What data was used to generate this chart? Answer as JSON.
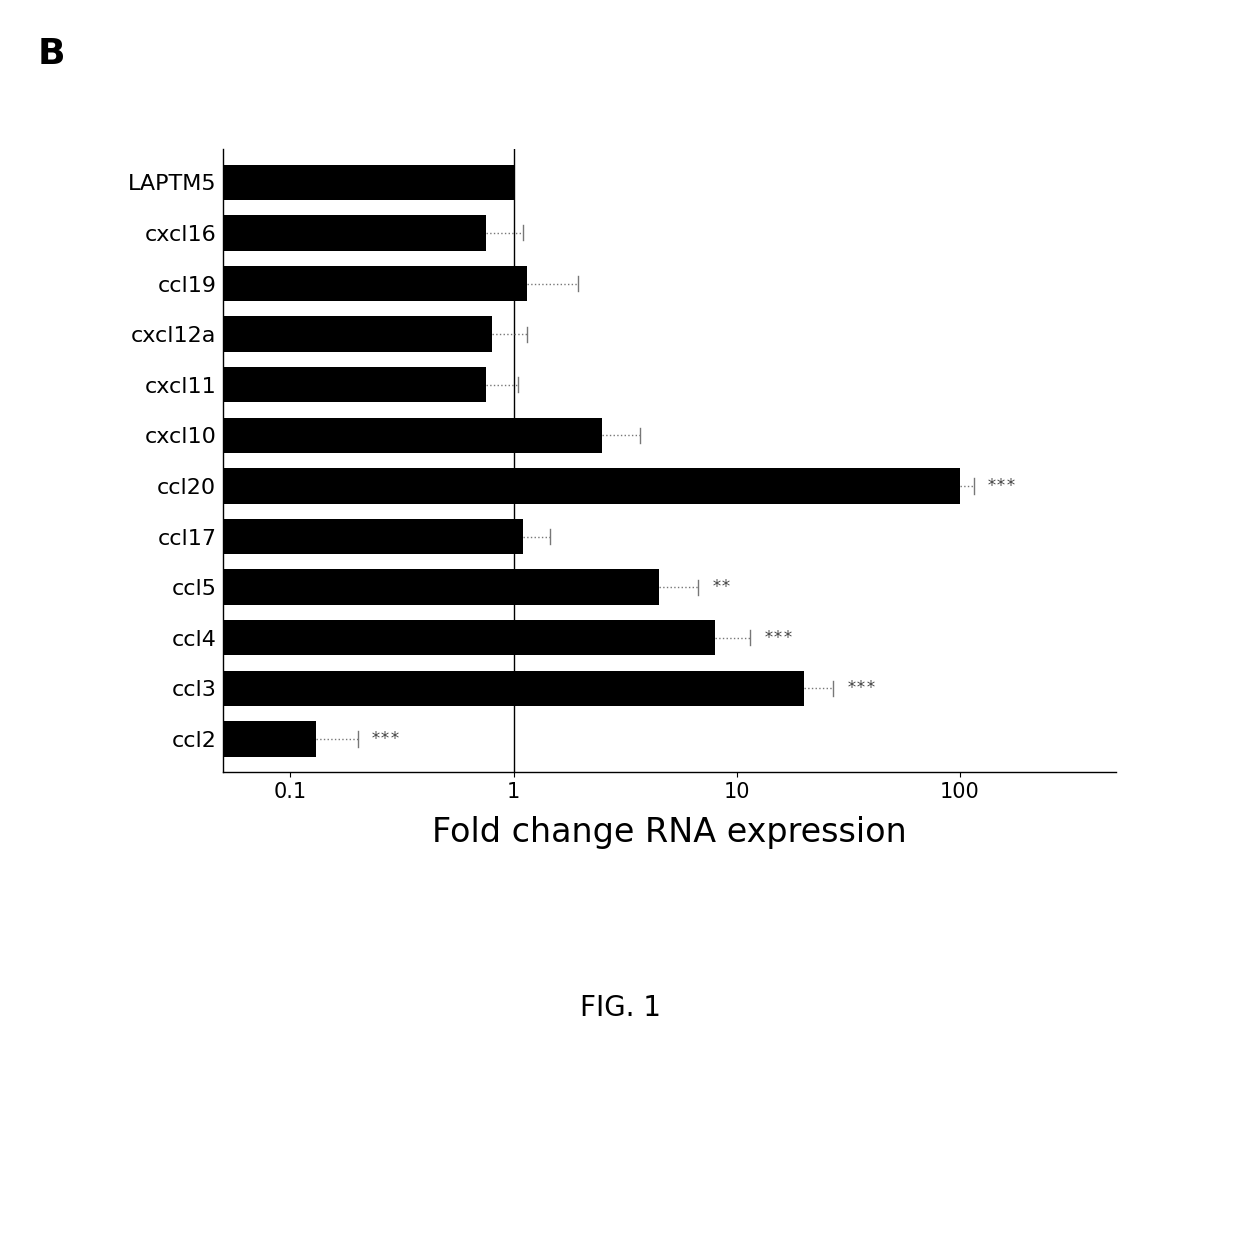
{
  "categories": [
    "LAPTM5",
    "cxcl16",
    "ccl19",
    "cxcl12a",
    "cxcl11",
    "cxcl10",
    "ccl20",
    "ccl17",
    "ccl5",
    "ccl4",
    "ccl3",
    "ccl2"
  ],
  "values": [
    1.0,
    0.75,
    1.15,
    0.8,
    0.75,
    2.5,
    100.0,
    1.1,
    4.5,
    8.0,
    20.0,
    0.13
  ],
  "errors": [
    0.0,
    0.35,
    0.8,
    0.35,
    0.3,
    1.2,
    15.0,
    0.35,
    2.2,
    3.5,
    7.0,
    0.07
  ],
  "significance": [
    "",
    "",
    "",
    "",
    "",
    "",
    "***",
    "",
    "**",
    "***",
    "***",
    "***"
  ],
  "bar_color": "#000000",
  "error_color": "#777777",
  "sig_color": "#444444",
  "xlabel": "Fold change RNA expression",
  "panel_label": "B",
  "fig_label": "FIG. 1",
  "xlim": [
    0.05,
    500
  ],
  "xlabel_fontsize": 24,
  "panel_label_fontsize": 26,
  "fig_label_fontsize": 20,
  "ytick_fontsize": 16,
  "sig_fontsize": 12,
  "xtick_fontsize": 15,
  "bar_height": 0.7,
  "background_color": "#ffffff"
}
